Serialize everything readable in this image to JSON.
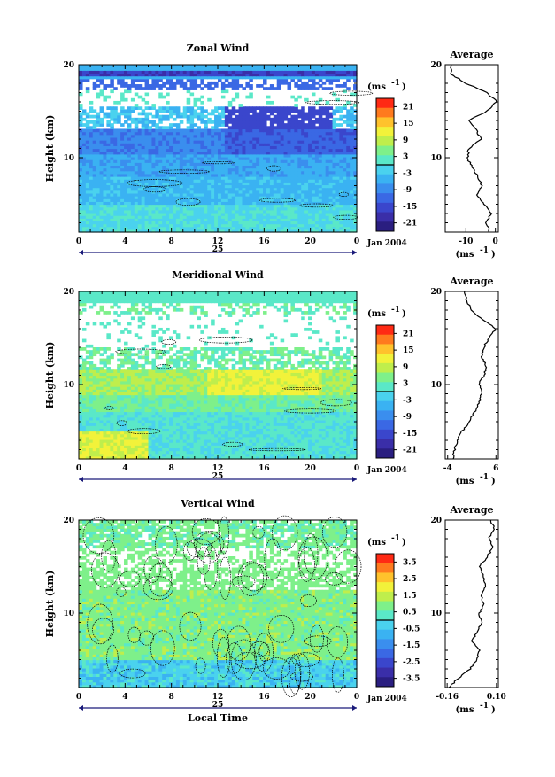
{
  "chart_data": [
    {
      "type": "heatmap",
      "title": "Zonal Wind",
      "ylabel": "Height (km)",
      "y_ticks": [
        "20",
        "10"
      ],
      "x_ticks": [
        "0",
        "4",
        "8",
        "12",
        "16",
        "20",
        "0"
      ],
      "date_label": "25",
      "date_suffix": "Jan 2004",
      "ylim": [
        2,
        20
      ],
      "xlim": [
        0,
        24
      ],
      "colorbar": {
        "unit": "(ms",
        "unit_sup": "-1",
        "labels": [
          "21",
          "15",
          "9",
          "3",
          "-3",
          "-9",
          "-15",
          "-21"
        ],
        "colors": [
          "#ff2a14",
          "#ff7a1e",
          "#ffc22c",
          "#f2f23a",
          "#bfee4c",
          "#7ef08a",
          "#5ae8c8",
          "#4ad2ee",
          "#3ab2f2",
          "#3a8eee",
          "#3a68e4",
          "#3a46cc",
          "#3a2ea8",
          "#2a1e80"
        ],
        "zero_index": 7
      },
      "profile": {
        "title": "Average",
        "x_ticks": [
          "-10",
          "0"
        ],
        "unit": "(ms",
        "unit_sup": "-1",
        "xlim": [
          -17,
          1
        ],
        "heights": [
          2,
          3,
          4,
          5,
          6,
          7,
          8,
          9,
          10,
          11,
          12,
          13,
          14,
          15,
          16,
          17,
          18,
          19,
          20
        ],
        "values": [
          -2,
          -3,
          -1.5,
          -4,
          -6,
          -4.5,
          -6,
          -8,
          -9.5,
          -9,
          -5,
          -6.5,
          -9,
          -3,
          0.5,
          -3,
          -10,
          -15,
          -15
        ]
      }
    },
    {
      "type": "heatmap",
      "title": "Meridional Wind",
      "ylabel": "Height (km)",
      "y_ticks": [
        "20",
        "10"
      ],
      "x_ticks": [
        "0",
        "4",
        "8",
        "12",
        "16",
        "20",
        "0"
      ],
      "date_label": "25",
      "date_suffix": "Jan 2004",
      "ylim": [
        2,
        20
      ],
      "xlim": [
        0,
        24
      ],
      "colorbar": {
        "unit": "(ms",
        "unit_sup": "-1",
        "labels": [
          "21",
          "15",
          "9",
          "3",
          "-3",
          "-9",
          "-15",
          "-21"
        ],
        "colors": [
          "#ff2a14",
          "#ff7a1e",
          "#ffc22c",
          "#f2f23a",
          "#bfee4c",
          "#7ef08a",
          "#5ae8c8",
          "#4ad2ee",
          "#3ab2f2",
          "#3a8eee",
          "#3a68e4",
          "#3a46cc",
          "#3a2ea8",
          "#2a1e80"
        ],
        "zero_index": 7
      },
      "profile": {
        "title": "Average",
        "x_ticks": [
          "-4",
          "6"
        ],
        "unit": "(ms",
        "unit_sup": "-1",
        "xlim": [
          -4.5,
          6.5
        ],
        "heights": [
          2,
          3,
          4,
          5,
          6,
          7,
          8,
          9,
          10,
          11,
          12,
          13,
          14,
          15,
          16,
          17,
          18,
          19,
          20
        ],
        "values": [
          -3,
          -2.5,
          -2,
          -1,
          0.5,
          1.5,
          2.5,
          3,
          2.5,
          3.5,
          4,
          3,
          3.5,
          4.5,
          6,
          3,
          1,
          0,
          -0.5
        ]
      }
    },
    {
      "type": "heatmap",
      "title": "Vertical Wind",
      "ylabel": "Height (km)",
      "xlabel": "Local Time",
      "y_ticks": [
        "20",
        "10"
      ],
      "x_ticks": [
        "0",
        "4",
        "8",
        "12",
        "16",
        "20",
        "0"
      ],
      "date_label": "25",
      "date_suffix": "Jan 2004",
      "ylim": [
        2,
        20
      ],
      "xlim": [
        0,
        24
      ],
      "colorbar": {
        "unit": "(ms",
        "unit_sup": "-1",
        "labels": [
          "3.5",
          "2.5",
          "1.5",
          "0.5",
          "-0.5",
          "-1.5",
          "-2.5",
          "-3.5"
        ],
        "colors": [
          "#ff2a14",
          "#ff7a1e",
          "#ffc22c",
          "#f2f23a",
          "#bfee4c",
          "#7ef08a",
          "#5ae8c8",
          "#4ad2ee",
          "#3ab2f2",
          "#3a8eee",
          "#3a68e4",
          "#3a46cc",
          "#3a2ea8",
          "#2a1e80"
        ],
        "zero_index": 7
      },
      "profile": {
        "title": "Average",
        "x_ticks": [
          "-0.16",
          "0.10"
        ],
        "unit": "(ms",
        "unit_sup": "-1",
        "xlim": [
          -0.17,
          0.11
        ],
        "heights": [
          2,
          3,
          4,
          5,
          6,
          7,
          8,
          9,
          10,
          11,
          12,
          13,
          14,
          15,
          16,
          17,
          18,
          19,
          20
        ],
        "values": [
          -0.15,
          -0.1,
          -0.04,
          0.0,
          0.01,
          -0.03,
          0.0,
          0.02,
          0.01,
          0.03,
          0.02,
          0.04,
          0.03,
          0.01,
          0.05,
          0.08,
          0.06,
          0.09,
          0.07
        ]
      }
    }
  ]
}
